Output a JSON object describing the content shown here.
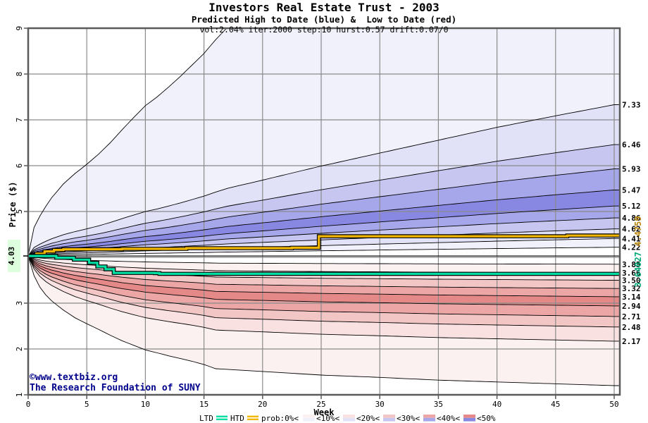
{
  "header": {
    "title": "Investors Real Estate Trust - 2003",
    "subtitle": "Predicted High to Date (blue) &  Low to Date (red)",
    "params": "vol:2.04% iter:2000 step:10 hurst:0.57 drift:0.07/0"
  },
  "watermark": {
    "line1": "©www.textbiz.org",
    "line2": "The Research Foundation of SUNY"
  },
  "chart_data": {
    "type": "area",
    "title": "Investors Real Estate Trust - 2003",
    "subtitle": "Predicted High to Date (blue) &  Low to Date (red)",
    "annotation": "vol:2.04% iter:2000 step:10 hurst:0.57 drift:0.07/0",
    "xlabel": "Week",
    "ylabel": "Price ($)",
    "xlim": [
      0,
      50
    ],
    "ylim": [
      1,
      9
    ],
    "grid": true,
    "xticks": [
      0,
      5,
      10,
      15,
      20,
      25,
      30,
      35,
      40,
      45,
      50
    ],
    "ytick_values": [
      9,
      8,
      7,
      6,
      5,
      3,
      2,
      1
    ],
    "ytick_labels": [
      "9",
      "8",
      "7",
      "6",
      "5",
      "3",
      "2",
      "1"
    ],
    "grid_weeks": [
      5,
      10,
      15,
      20,
      25,
      30,
      35,
      40,
      45,
      50
    ],
    "grid_prices": [
      2,
      3,
      4,
      5,
      6,
      7,
      8
    ],
    "start": {
      "week": 0,
      "price": 4.03,
      "label": "4.03",
      "highlight": "#ddffdd"
    },
    "reference_price": 4.03,
    "high_fan": {
      "side": "high",
      "contour_ends": [
        4.22,
        4.41,
        4.62,
        4.86,
        5.12,
        5.47,
        5.93,
        6.46,
        7.33
      ],
      "labels": [
        "4.22",
        "4.41",
        "4.62",
        "4.86",
        "5.12",
        "5.47",
        "5.93",
        "6.46",
        "7.33"
      ],
      "envelope_end": 15.2,
      "shape": [
        [
          0,
          0
        ],
        [
          0.5,
          0.62
        ],
        [
          1,
          0.87
        ],
        [
          1.5,
          1.08
        ],
        [
          2,
          1.27
        ],
        [
          3,
          1.57
        ],
        [
          4,
          1.8
        ],
        [
          5,
          2.0
        ],
        [
          6,
          2.22
        ],
        [
          7,
          2.47
        ],
        [
          8,
          2.75
        ],
        [
          9,
          3.02
        ],
        [
          10,
          3.28
        ],
        [
          11,
          3.47
        ],
        [
          12,
          3.69
        ],
        [
          13,
          3.92
        ],
        [
          14,
          4.17
        ],
        [
          15,
          4.42
        ],
        [
          16,
          4.72
        ],
        [
          17,
          4.99
        ],
        [
          18,
          5.2
        ],
        [
          20,
          5.6
        ],
        [
          25,
          6.64
        ],
        [
          30,
          7.6
        ],
        [
          35,
          8.55
        ],
        [
          40,
          9.5
        ],
        [
          45,
          10.35
        ],
        [
          50,
          11.17
        ]
      ]
    },
    "low_fan": {
      "side": "low",
      "contour_ends": [
        3.85,
        3.66,
        3.5,
        3.32,
        3.14,
        2.94,
        2.71,
        2.48,
        2.17
      ],
      "labels": [
        "3.85",
        "3.66",
        "3.50",
        "3.32",
        "3.14",
        "2.94",
        "2.71",
        "2.48",
        "2.17"
      ],
      "envelope_end": 1.2,
      "shape": [
        [
          0,
          0
        ],
        [
          0.5,
          0.43
        ],
        [
          1,
          0.68
        ],
        [
          1.5,
          0.85
        ],
        [
          2,
          0.98
        ],
        [
          3,
          1.18
        ],
        [
          4,
          1.35
        ],
        [
          5,
          1.48
        ],
        [
          6,
          1.6
        ],
        [
          7,
          1.73
        ],
        [
          8,
          1.85
        ],
        [
          10,
          2.05
        ],
        [
          12,
          2.18
        ],
        [
          14,
          2.3
        ],
        [
          15,
          2.37
        ],
        [
          16,
          2.46
        ],
        [
          18,
          2.49
        ],
        [
          20,
          2.52
        ],
        [
          25,
          2.6
        ],
        [
          30,
          2.65
        ],
        [
          35,
          2.71
        ],
        [
          40,
          2.75
        ],
        [
          45,
          2.79
        ],
        [
          50,
          2.83
        ]
      ]
    },
    "band_colors": {
      "blue": [
        "#f1f1fb",
        "#e1e1f8",
        "#c6c6f1",
        "#a6a6ea",
        "#8888e2"
      ],
      "red": [
        "#fcf1f1",
        "#f9e1e1",
        "#f3c6c6",
        "#eda6a6",
        "#e58888"
      ]
    },
    "series": [
      {
        "id": "HTD",
        "name": "High to Date",
        "color": "#f2b705",
        "label_color": "#b8860b",
        "final_label": "4.4759",
        "points": [
          [
            0,
            4.03
          ],
          [
            0.7,
            4.08
          ],
          [
            1.4,
            4.13
          ],
          [
            2.2,
            4.16
          ],
          [
            3,
            4.175
          ],
          [
            8,
            4.185
          ],
          [
            13.5,
            4.2
          ],
          [
            22.5,
            4.21
          ],
          [
            24.8,
            4.46
          ],
          [
            46,
            4.4759
          ],
          [
            50,
            4.4759
          ]
        ]
      },
      {
        "id": "LTD",
        "name": "Low to Date",
        "color": "#00dfa4",
        "label_color": "#00a877",
        "final_label": "3.64027",
        "points": [
          [
            0,
            4.03
          ],
          [
            2.1,
            4.03
          ],
          [
            2.4,
            3.99
          ],
          [
            3.9,
            3.95
          ],
          [
            5.2,
            3.88
          ],
          [
            5.9,
            3.8
          ],
          [
            6.6,
            3.74
          ],
          [
            7.3,
            3.66
          ],
          [
            10.8,
            3.655
          ],
          [
            11.2,
            3.64027
          ],
          [
            50,
            3.64027
          ]
        ]
      }
    ],
    "legend": {
      "ltd_label": "LTD",
      "htd_label": "HTD",
      "prob_label": "prob:0%<",
      "band_labels": [
        "<10%<",
        "<20%<",
        "<30%<",
        "<40%<",
        "<50%"
      ]
    },
    "colors": {
      "grid": "#8a8a8a",
      "border": "#5a5a5a",
      "contour": "#000000",
      "text": "#000000",
      "watermark": "#00008b"
    }
  }
}
